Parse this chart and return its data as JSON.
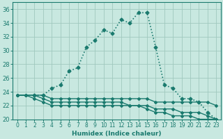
{
  "xlabel": "Humidex (Indice chaleur)",
  "background_color": "#c8e8e0",
  "grid_color": "#a0c8be",
  "line_color": "#1a7a6e",
  "xlim": [
    -0.5,
    23.5
  ],
  "ylim": [
    20,
    37
  ],
  "xticks": [
    0,
    1,
    2,
    3,
    4,
    5,
    6,
    7,
    8,
    9,
    10,
    11,
    12,
    13,
    14,
    15,
    16,
    17,
    18,
    19,
    20,
    21,
    22,
    23
  ],
  "yticks": [
    20,
    22,
    24,
    26,
    28,
    30,
    32,
    34,
    36
  ],
  "series": [
    {
      "x": [
        2,
        3,
        4,
        5,
        6,
        7,
        8,
        9,
        10,
        11,
        12,
        13,
        14,
        15,
        16,
        17,
        18,
        19,
        20,
        21,
        22,
        23
      ],
      "y": [
        23.5,
        23.5,
        24.5,
        25.0,
        27.0,
        27.5,
        30.5,
        31.5,
        33.0,
        32.5,
        34.5,
        34.0,
        35.5,
        35.5,
        30.5,
        25.0,
        24.5,
        23.0,
        23.0,
        22.5,
        21.0,
        20.0
      ],
      "style": ":",
      "marker": "D",
      "markersize": 2.5,
      "linewidth": 1.2
    },
    {
      "x": [
        0,
        1,
        2,
        3,
        4,
        5,
        6,
        7,
        8,
        9,
        10,
        11,
        12,
        13,
        14,
        15,
        16,
        17,
        18,
        19,
        20,
        21,
        22,
        23
      ],
      "y": [
        23.5,
        23.5,
        23.5,
        23.5,
        23.0,
        23.0,
        23.0,
        23.0,
        23.0,
        23.0,
        23.0,
        23.0,
        23.0,
        23.0,
        23.0,
        23.0,
        22.5,
        22.5,
        22.5,
        22.5,
        22.5,
        22.5,
        22.5,
        22.0
      ],
      "style": "-",
      "marker": "D",
      "markersize": 2.0,
      "linewidth": 1.0
    },
    {
      "x": [
        0,
        1,
        2,
        3,
        4,
        5,
        6,
        7,
        8,
        9,
        10,
        11,
        12,
        13,
        14,
        15,
        16,
        17,
        18,
        19,
        20,
        21,
        22,
        23
      ],
      "y": [
        23.5,
        23.5,
        23.5,
        23.0,
        22.5,
        22.5,
        22.5,
        22.5,
        22.5,
        22.5,
        22.5,
        22.5,
        22.5,
        22.0,
        22.0,
        22.0,
        21.5,
        21.5,
        21.5,
        21.0,
        21.0,
        21.0,
        20.5,
        20.0
      ],
      "style": "-",
      "marker": "D",
      "markersize": 2.0,
      "linewidth": 1.0
    },
    {
      "x": [
        0,
        1,
        2,
        3,
        4,
        5,
        6,
        7,
        8,
        9,
        10,
        11,
        12,
        13,
        14,
        15,
        16,
        17,
        18,
        19,
        20,
        21,
        22,
        23
      ],
      "y": [
        23.5,
        23.5,
        23.0,
        22.5,
        22.0,
        22.0,
        22.0,
        22.0,
        22.0,
        22.0,
        22.0,
        22.0,
        22.0,
        22.0,
        22.0,
        21.5,
        21.0,
        21.0,
        20.5,
        20.5,
        20.5,
        20.0,
        20.0,
        20.0
      ],
      "style": "-",
      "marker": "D",
      "markersize": 2.0,
      "linewidth": 1.0
    }
  ]
}
